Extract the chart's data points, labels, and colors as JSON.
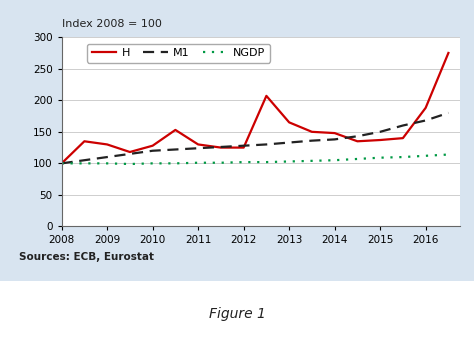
{
  "title_label": "Index 2008 = 100",
  "figure_label": "Figure 1",
  "source_label": "Sources: ECB, Eurostat",
  "background_color": "#d8e4f0",
  "plot_background_color": "#ffffff",
  "ylim": [
    0,
    300
  ],
  "yticks": [
    0,
    50,
    100,
    150,
    200,
    250,
    300
  ],
  "x_years": [
    2008,
    2008.5,
    2009,
    2009.5,
    2010,
    2010.5,
    2011,
    2011.5,
    2012,
    2012.5,
    2013,
    2013.5,
    2014,
    2014.5,
    2015,
    2015.5,
    2016,
    2016.5
  ],
  "H": [
    100,
    135,
    130,
    118,
    128,
    153,
    130,
    125,
    125,
    207,
    165,
    150,
    148,
    135,
    137,
    140,
    188,
    275
  ],
  "M1": [
    100,
    105,
    110,
    115,
    120,
    122,
    124,
    126,
    128,
    130,
    133,
    136,
    138,
    143,
    150,
    160,
    168,
    180
  ],
  "NGDP": [
    100,
    100,
    100,
    99,
    100,
    100,
    101,
    101,
    102,
    102,
    103,
    104,
    105,
    107,
    109,
    110,
    112,
    114
  ],
  "H_color": "#cc0000",
  "M1_color": "#222222",
  "NGDP_color": "#009944",
  "xlim": [
    2008,
    2016.75
  ],
  "xtick_labels": [
    "2008",
    "2009",
    "2010",
    "2011",
    "2012",
    "2013",
    "2014",
    "2015",
    "2016"
  ],
  "xtick_positions": [
    2008,
    2009,
    2010,
    2011,
    2012,
    2013,
    2014,
    2015,
    2016
  ]
}
